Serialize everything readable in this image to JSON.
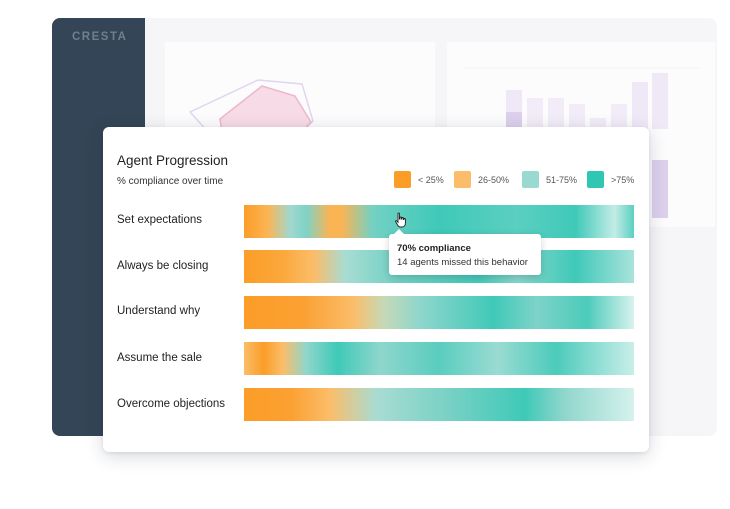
{
  "brand": "CRESTA",
  "card": {
    "title": "Agent Progression",
    "subtitle": "% compliance over time"
  },
  "legend": [
    {
      "label": "< 25%",
      "color": "#fb9d27"
    },
    {
      "label": "26-50%",
      "color": "#fbbd6a"
    },
    {
      "label": "51-75%",
      "color": "#9ad9d0"
    },
    {
      "label": ">75%",
      "color": "#2fc7b4"
    }
  ],
  "rows": [
    {
      "label": "Set expectations"
    },
    {
      "label": "Always be closing"
    },
    {
      "label": "Understand why"
    },
    {
      "label": "Assume the sale"
    },
    {
      "label": "Overcome objections"
    }
  ],
  "tooltip": {
    "title": "70% compliance",
    "text": "14 agents missed this behavior"
  }
}
